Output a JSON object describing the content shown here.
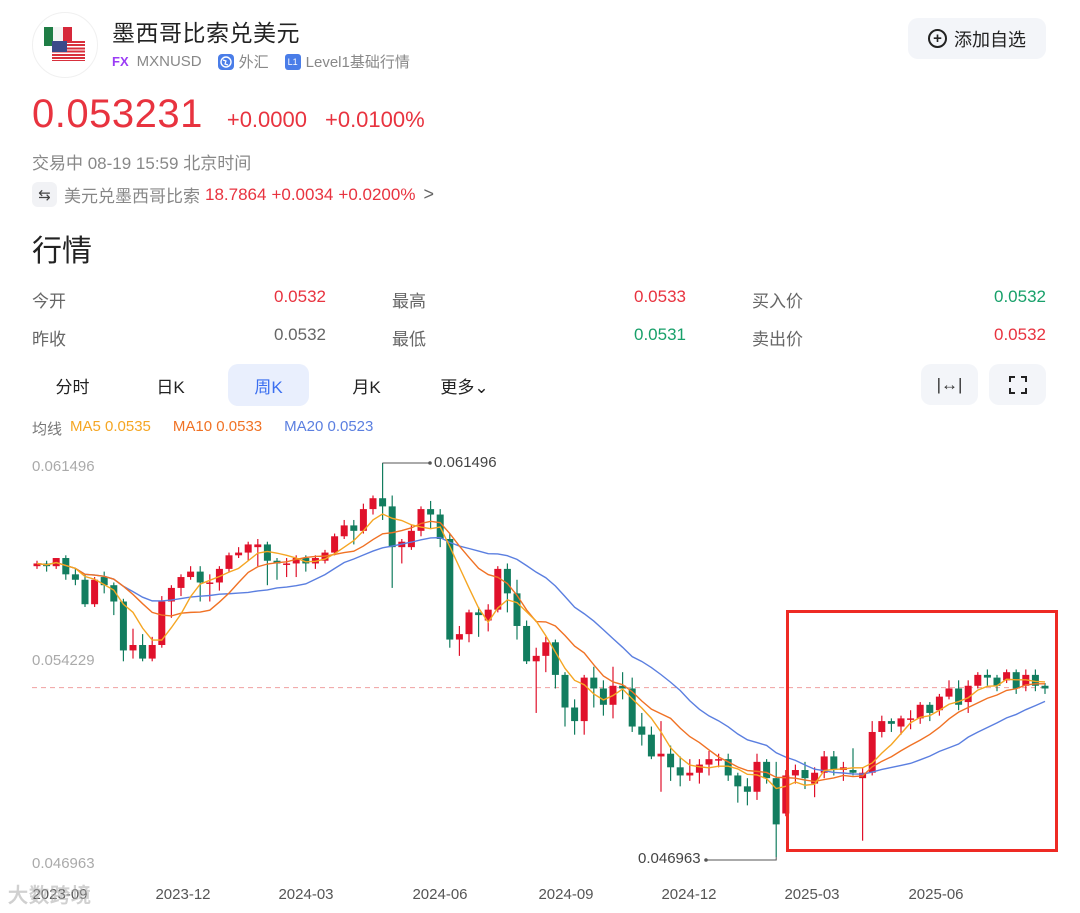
{
  "header": {
    "title": "墨西哥比索兑美元",
    "fx_badge": "FX",
    "symbol": "MXNUSD",
    "market_icon": "globe-icon",
    "market": "外汇",
    "level_icon": "L1",
    "level": "Level1基础行情",
    "add_watchlist_icon": "plus-circle-icon",
    "add_watchlist_label": "添加自选"
  },
  "quote": {
    "price": "0.053231",
    "change": "+0.0000",
    "change_pct": "+0.0100%",
    "status": "交易中 08-19 15:59 北京时间"
  },
  "related": {
    "swap_icon": "⇆",
    "name": "美元兑墨西哥比索",
    "price": "18.7864",
    "change": "+0.0034",
    "change_pct": "+0.0200%",
    "arrow": ">"
  },
  "section_title": "行情",
  "stats": [
    [
      {
        "label": "今开",
        "value": "0.0532",
        "tone": "up"
      },
      {
        "label": "最高",
        "value": "0.0533",
        "tone": "up"
      },
      {
        "label": "买入价",
        "value": "0.0532",
        "tone": "down"
      }
    ],
    [
      {
        "label": "昨收",
        "value": "0.0532",
        "tone": "flat"
      },
      {
        "label": "最低",
        "value": "0.0531",
        "tone": "down"
      },
      {
        "label": "卖出价",
        "value": "0.0532",
        "tone": "up"
      }
    ]
  ],
  "tabs": [
    {
      "label": "分时",
      "active": false
    },
    {
      "label": "日K",
      "active": false
    },
    {
      "label": "周K",
      "active": true
    },
    {
      "label": "月K",
      "active": false
    },
    {
      "label": "更多⌄",
      "active": false
    }
  ],
  "tools": {
    "fit_icon": "|↔|",
    "fullscreen_icon": "⛶"
  },
  "ma_legend": {
    "label": "均线",
    "ma5": "MA5 0.0535",
    "ma10": "MA10 0.0533",
    "ma20": "MA20 0.0523"
  },
  "colors": {
    "up": "#e0112b",
    "down": "#127d5f",
    "ma5": "#f5a623",
    "ma10": "#f07225",
    "ma20": "#5b7fe0",
    "price_red": "#e8333f",
    "highlight": "#ee2a24"
  },
  "watermark": "大数跨境",
  "chart_data": {
    "type": "candlestick",
    "title": "墨西哥比索兑美元 周K",
    "period": "weekly",
    "y_axis_labels": [
      "0.061496",
      "0.054229",
      "0.046963"
    ],
    "x_axis_labels": [
      "2023-09",
      "2023-12",
      "2024-03",
      "2024-06",
      "2024-09",
      "2024-12",
      "2025-03",
      "2025-06"
    ],
    "ylim": [
      0.046963,
      0.061496
    ],
    "max_marker": {
      "label": "0.061496",
      "value": 0.061496
    },
    "min_marker": {
      "label": "0.046963",
      "value": 0.046963
    },
    "current_price_line": 0.053231,
    "ma_latest": {
      "MA5": 0.0535,
      "MA10": 0.0533,
      "MA20": 0.0523
    },
    "highlight_region": {
      "from": "2025-02",
      "to": "2025-08"
    },
    "ohlc": [
      [
        0.0577,
        0.0578,
        0.0576,
        0.0579
      ],
      [
        0.0578,
        0.0577,
        0.0575,
        0.0579
      ],
      [
        0.0577,
        0.058,
        0.0576,
        0.058
      ],
      [
        0.058,
        0.0574,
        0.0572,
        0.0581
      ],
      [
        0.0574,
        0.0572,
        0.057,
        0.0576
      ],
      [
        0.0572,
        0.0563,
        0.0562,
        0.0574
      ],
      [
        0.0563,
        0.0572,
        0.0562,
        0.0573
      ],
      [
        0.0573,
        0.057,
        0.0567,
        0.0575
      ],
      [
        0.057,
        0.0564,
        0.0559,
        0.0571
      ],
      [
        0.0564,
        0.0546,
        0.0542,
        0.0565
      ],
      [
        0.0546,
        0.0548,
        0.0543,
        0.0554
      ],
      [
        0.0548,
        0.0543,
        0.0542,
        0.0552
      ],
      [
        0.0543,
        0.0548,
        0.0542,
        0.0551
      ],
      [
        0.0548,
        0.0564,
        0.0547,
        0.0566
      ],
      [
        0.0564,
        0.0569,
        0.0558,
        0.057
      ],
      [
        0.0569,
        0.0573,
        0.0566,
        0.0574
      ],
      [
        0.0573,
        0.0575,
        0.0572,
        0.0577
      ],
      [
        0.0575,
        0.0571,
        0.0564,
        0.0577
      ],
      [
        0.0571,
        0.0571,
        0.0564,
        0.0574
      ],
      [
        0.0571,
        0.0576,
        0.0568,
        0.0577
      ],
      [
        0.0576,
        0.0581,
        0.0575,
        0.0582
      ],
      [
        0.0581,
        0.0582,
        0.058,
        0.0584
      ],
      [
        0.0582,
        0.0585,
        0.0579,
        0.0586
      ],
      [
        0.0584,
        0.0585,
        0.0577,
        0.0587
      ],
      [
        0.0585,
        0.0579,
        0.057,
        0.0586
      ],
      [
        0.0579,
        0.0578,
        0.0572,
        0.058
      ],
      [
        0.0578,
        0.0578,
        0.0573,
        0.058
      ],
      [
        0.0578,
        0.058,
        0.0573,
        0.0581
      ],
      [
        0.058,
        0.0578,
        0.0575,
        0.0581
      ],
      [
        0.0578,
        0.058,
        0.0576,
        0.0581
      ],
      [
        0.0579,
        0.0582,
        0.0578,
        0.0583
      ],
      [
        0.0582,
        0.0588,
        0.0581,
        0.0589
      ],
      [
        0.0588,
        0.0592,
        0.0587,
        0.0594
      ],
      [
        0.0592,
        0.059,
        0.0585,
        0.0594
      ],
      [
        0.059,
        0.0598,
        0.0589,
        0.06
      ],
      [
        0.0598,
        0.0602,
        0.0596,
        0.0603
      ],
      [
        0.0602,
        0.0599,
        0.0594,
        0.0615
      ],
      [
        0.0599,
        0.0584,
        0.0569,
        0.0603
      ],
      [
        0.0584,
        0.0586,
        0.0578,
        0.0587
      ],
      [
        0.0584,
        0.059,
        0.0583,
        0.0592
      ],
      [
        0.059,
        0.0598,
        0.0588,
        0.0599
      ],
      [
        0.0598,
        0.0596,
        0.0591,
        0.0601
      ],
      [
        0.0596,
        0.0587,
        0.0584,
        0.0598
      ],
      [
        0.0587,
        0.055,
        0.0547,
        0.0589
      ],
      [
        0.055,
        0.0552,
        0.0544,
        0.0555
      ],
      [
        0.0552,
        0.056,
        0.0549,
        0.0561
      ],
      [
        0.056,
        0.0559,
        0.0551,
        0.0562
      ],
      [
        0.0557,
        0.0561,
        0.0553,
        0.0563
      ],
      [
        0.0561,
        0.0576,
        0.056,
        0.0577
      ],
      [
        0.0576,
        0.0567,
        0.056,
        0.0578
      ],
      [
        0.0567,
        0.0555,
        0.055,
        0.0572
      ],
      [
        0.0555,
        0.0542,
        0.0541,
        0.0557
      ],
      [
        0.0542,
        0.0544,
        0.0523,
        0.0547
      ],
      [
        0.0544,
        0.0549,
        0.0538,
        0.0551
      ],
      [
        0.0549,
        0.0537,
        0.0532,
        0.055
      ],
      [
        0.0537,
        0.0525,
        0.0518,
        0.0538
      ],
      [
        0.0525,
        0.052,
        0.0515,
        0.0528
      ],
      [
        0.052,
        0.0536,
        0.0515,
        0.0537
      ],
      [
        0.0536,
        0.0532,
        0.0525,
        0.054
      ],
      [
        0.0532,
        0.0526,
        0.0522,
        0.0535
      ],
      [
        0.0526,
        0.0533,
        0.0521,
        0.054
      ],
      [
        0.0533,
        0.0532,
        0.0528,
        0.0538
      ],
      [
        0.0532,
        0.0518,
        0.0516,
        0.0536
      ],
      [
        0.0518,
        0.0515,
        0.0511,
        0.0523
      ],
      [
        0.0515,
        0.0507,
        0.0506,
        0.0518
      ],
      [
        0.0507,
        0.0508,
        0.0494,
        0.052
      ],
      [
        0.0508,
        0.0503,
        0.0498,
        0.0511
      ],
      [
        0.0503,
        0.05,
        0.0496,
        0.0507
      ],
      [
        0.05,
        0.0501,
        0.0498,
        0.0506
      ],
      [
        0.0501,
        0.0504,
        0.0497,
        0.0506
      ],
      [
        0.0504,
        0.0506,
        0.05,
        0.0509
      ],
      [
        0.0506,
        0.0506,
        0.0503,
        0.0508
      ],
      [
        0.0506,
        0.05,
        0.0498,
        0.0508
      ],
      [
        0.05,
        0.0496,
        0.049,
        0.0501
      ],
      [
        0.0496,
        0.0494,
        0.0489,
        0.0499
      ],
      [
        0.0494,
        0.0505,
        0.0491,
        0.0508
      ],
      [
        0.0505,
        0.0499,
        0.0497,
        0.0506
      ],
      [
        0.0499,
        0.0482,
        0.047,
        0.0505
      ],
      [
        0.0486,
        0.05,
        0.0485,
        0.0502
      ],
      [
        0.05,
        0.0502,
        0.0497,
        0.0504
      ],
      [
        0.0502,
        0.0499,
        0.0495,
        0.0505
      ],
      [
        0.0497,
        0.0501,
        0.0492,
        0.0503
      ],
      [
        0.0501,
        0.0507,
        0.0499,
        0.0509
      ],
      [
        0.0507,
        0.0502,
        0.05,
        0.0509
      ],
      [
        0.0502,
        0.0503,
        0.0498,
        0.0505
      ],
      [
        0.0502,
        0.0501,
        0.05,
        0.051
      ],
      [
        0.0499,
        0.0501,
        0.0476,
        0.0503
      ],
      [
        0.0501,
        0.0516,
        0.05,
        0.052
      ],
      [
        0.0516,
        0.052,
        0.0514,
        0.0522
      ],
      [
        0.052,
        0.0519,
        0.0516,
        0.0521
      ],
      [
        0.0518,
        0.0521,
        0.0515,
        0.0522
      ],
      [
        0.0521,
        0.0521,
        0.0517,
        0.0524
      ],
      [
        0.0521,
        0.0526,
        0.0519,
        0.0527
      ],
      [
        0.0526,
        0.0523,
        0.052,
        0.0527
      ],
      [
        0.0524,
        0.0529,
        0.0522,
        0.053
      ],
      [
        0.0529,
        0.0532,
        0.0528,
        0.0535
      ],
      [
        0.0532,
        0.0526,
        0.0524,
        0.0535
      ],
      [
        0.0527,
        0.0533,
        0.0523,
        0.0535
      ],
      [
        0.0533,
        0.0537,
        0.0532,
        0.0538
      ],
      [
        0.0537,
        0.0536,
        0.0533,
        0.0539
      ],
      [
        0.0536,
        0.0533,
        0.0531,
        0.0537
      ],
      [
        0.0535,
        0.0538,
        0.0534,
        0.0539
      ],
      [
        0.0538,
        0.0532,
        0.053,
        0.0539
      ],
      [
        0.0533,
        0.0537,
        0.0531,
        0.0539
      ],
      [
        0.0537,
        0.0533,
        0.0531,
        0.0539
      ],
      [
        0.0533,
        0.0532,
        0.053,
        0.0534
      ]
    ],
    "ohlc_format": [
      "open",
      "close",
      "low",
      "high"
    ]
  }
}
